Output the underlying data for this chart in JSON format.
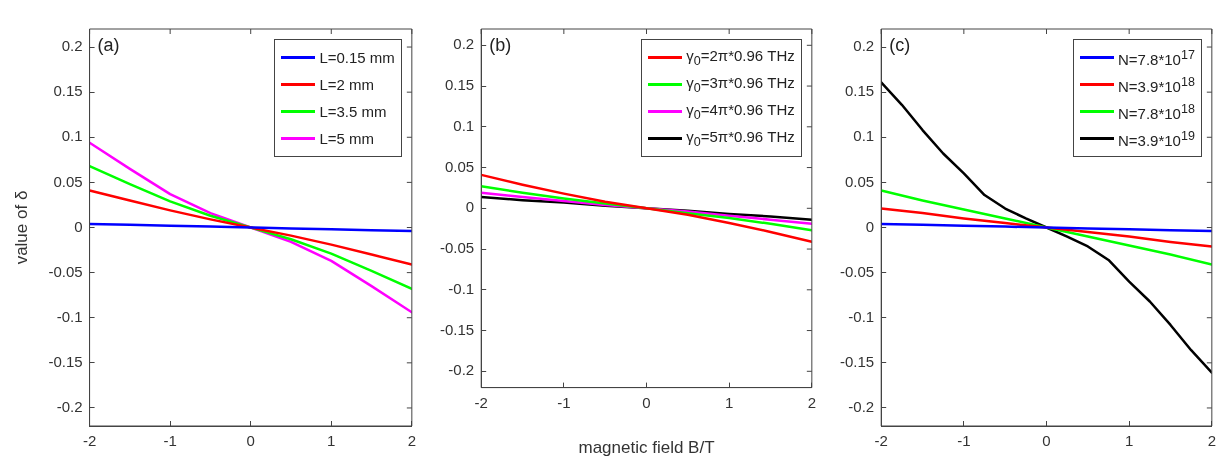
{
  "chart_data": [
    {
      "type": "line",
      "ylabel": "value of δ",
      "annotations": [
        "(a)"
      ],
      "xlim": [
        -2,
        2
      ],
      "xticks": [
        -2,
        -1,
        0,
        1,
        2
      ],
      "ylim": [
        -0.22,
        0.22
      ],
      "yticks": [
        -0.2,
        -0.15,
        -0.1,
        -0.05,
        0,
        0.05,
        0.1,
        0.15,
        0.2
      ],
      "grid": false,
      "legend": "top right",
      "marker": "none",
      "line_style": "solid",
      "x": [
        -2,
        -1.5,
        -1,
        -0.5,
        0,
        0.5,
        1,
        1.5,
        2
      ],
      "series": [
        {
          "name": "L=0.15 mm",
          "color": "#0000ff",
          "values": [
            0.004,
            0.003,
            0.002,
            0.001,
            0,
            -0.001,
            -0.002,
            -0.003,
            -0.004
          ]
        },
        {
          "name": "L=2 mm",
          "color": "#ff0000",
          "values": [
            0.041,
            0.03,
            0.019,
            0.009,
            0,
            -0.009,
            -0.019,
            -0.03,
            -0.041
          ]
        },
        {
          "name": "L=3.5 mm",
          "color": "#00ff00",
          "values": [
            0.068,
            0.048,
            0.029,
            0.013,
            0,
            -0.013,
            -0.029,
            -0.048,
            -0.068
          ]
        },
        {
          "name": "L=5 mm",
          "color": "#ff00ff",
          "values": [
            0.094,
            0.065,
            0.037,
            0.016,
            0,
            -0.016,
            -0.037,
            -0.065,
            -0.094
          ]
        }
      ]
    },
    {
      "type": "line",
      "xlabel": "magnetic field B/T",
      "annotations": [
        "(b)"
      ],
      "xlim": [
        -2,
        2
      ],
      "xticks": [
        -2,
        -1,
        0,
        1,
        2
      ],
      "ylim": [
        -0.22,
        0.22
      ],
      "yticks": [
        -0.2,
        -0.15,
        -0.1,
        -0.05,
        0,
        0.05,
        0.1,
        0.15,
        0.2
      ],
      "grid": false,
      "legend": "top right",
      "marker": "none",
      "line_style": "solid",
      "x": [
        -2,
        -1.5,
        -1,
        -0.5,
        0,
        0.5,
        1,
        1.5,
        2
      ],
      "series": [
        {
          "name": "γ$_{0}$=2π*0.96 THz",
          "color": "#ff0000",
          "values": [
            0.041,
            0.029,
            0.018,
            0.008,
            0,
            -0.008,
            -0.018,
            -0.029,
            -0.041
          ]
        },
        {
          "name": "γ$_{0}$=3π*0.96 THz",
          "color": "#00ff00",
          "values": [
            0.027,
            0.019,
            0.012,
            0.006,
            0,
            -0.006,
            -0.012,
            -0.019,
            -0.027
          ]
        },
        {
          "name": "γ$_{0}$=4π*0.96 THz",
          "color": "#ff00ff",
          "values": [
            0.019,
            0.014,
            0.009,
            0.004,
            0,
            -0.004,
            -0.009,
            -0.014,
            -0.019
          ]
        },
        {
          "name": "γ$_{0}$=5π*0.96 THz",
          "color": "#000000",
          "values": [
            0.014,
            0.01,
            0.007,
            0.003,
            0,
            -0.003,
            -0.007,
            -0.01,
            -0.014
          ]
        }
      ]
    },
    {
      "type": "line",
      "annotations": [
        "(c)"
      ],
      "xlim": [
        -2,
        2
      ],
      "xticks": [
        -2,
        -1,
        0,
        1,
        2
      ],
      "ylim": [
        -0.22,
        0.22
      ],
      "yticks": [
        -0.2,
        -0.15,
        -0.1,
        -0.05,
        0,
        0.05,
        0.1,
        0.15,
        0.2
      ],
      "grid": false,
      "legend": "top right",
      "marker": "none",
      "line_style": "solid",
      "x": [
        -2,
        -1.5,
        -1,
        -0.5,
        0,
        0.5,
        1,
        1.5,
        2
      ],
      "series": [
        {
          "name": "N=7.8*10$^{17}$",
          "color": "#0000ff",
          "values": [
            0.004,
            0.003,
            0.002,
            0.001,
            0,
            -0.001,
            -0.002,
            -0.003,
            -0.004
          ]
        },
        {
          "name": "N=3.9*10$^{18}$",
          "color": "#ff0000",
          "values": [
            0.021,
            0.016,
            0.01,
            0.005,
            0,
            -0.005,
            -0.01,
            -0.016,
            -0.021
          ]
        },
        {
          "name": "N=7.8*10$^{18}$",
          "color": "#00ff00",
          "values": [
            0.041,
            0.03,
            0.02,
            0.01,
            0,
            -0.01,
            -0.02,
            -0.03,
            -0.041
          ]
        },
        {
          "name": "N=3.9*10$^{19}$",
          "color": "#000000",
          "x": [
            -2,
            -1.75,
            -1.5,
            -1.25,
            -1,
            -0.75,
            -0.5,
            -0.25,
            0,
            0.25,
            0.5,
            0.75,
            1,
            1.25,
            1.5,
            1.75,
            2
          ],
          "values": [
            0.161,
            0.136,
            0.108,
            0.082,
            0.06,
            0.036,
            0.021,
            0.01,
            0,
            -0.01,
            -0.021,
            -0.036,
            -0.06,
            -0.082,
            -0.108,
            -0.136,
            -0.161
          ]
        }
      ]
    }
  ]
}
